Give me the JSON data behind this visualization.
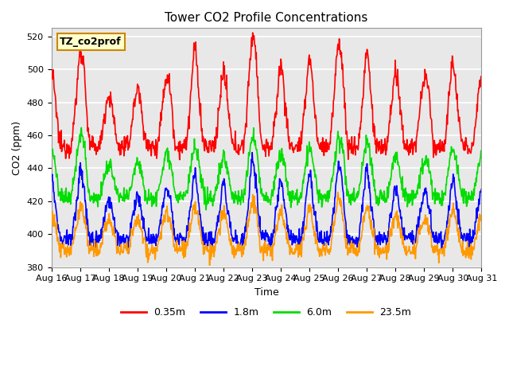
{
  "title": "Tower CO2 Profile Concentrations",
  "xlabel": "Time",
  "ylabel": "CO2 (ppm)",
  "ylim": [
    380,
    525
  ],
  "yticks": [
    380,
    400,
    420,
    440,
    460,
    480,
    500,
    520
  ],
  "legend_label": "TZ_co2prof",
  "series_labels": [
    "0.35m",
    "1.8m",
    "6.0m",
    "23.5m"
  ],
  "series_colors": [
    "#ff0000",
    "#0000ff",
    "#00dd00",
    "#ff9900"
  ],
  "x_tick_labels": [
    "Aug 16",
    "Aug 17",
    "Aug 18",
    "Aug 19",
    "Aug 20",
    "Aug 21",
    "Aug 22",
    "Aug 23",
    "Aug 24",
    "Aug 25",
    "Aug 26",
    "Aug 27",
    "Aug 28",
    "Aug 29",
    "Aug 30",
    "Aug 31"
  ],
  "plot_bg": "#e8e8e8",
  "grid_color": "#ffffff",
  "n_points": 960
}
